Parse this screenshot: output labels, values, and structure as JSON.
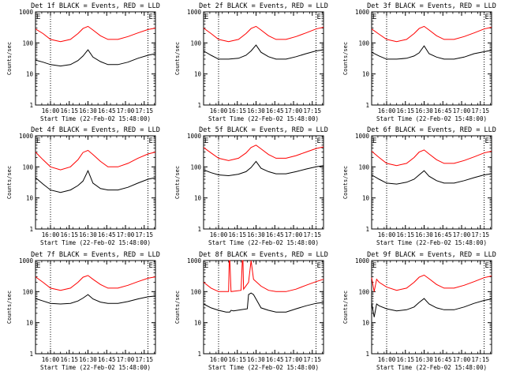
{
  "chart_data": [
    {
      "type": "line",
      "title": "Det 1f BLACK = Events, RED = LLD",
      "xlabel": "Start Time (22-Feb-02 15:48:00)",
      "ylabel": "Counts/sec",
      "x_ticks": [
        "16:00",
        "16:15",
        "16:30",
        "16:45",
        "17:00",
        "17:15"
      ],
      "y_ticks": [
        "1",
        "10",
        "100",
        "1000"
      ],
      "y_scale": "log",
      "ylim": [
        1,
        1000
      ],
      "x_range_min": [
        0,
        96
      ],
      "dotted_lines_min": [
        12,
        90
      ],
      "corner_markers": [
        "E",
        "E"
      ],
      "series": [
        {
          "color": "#000000",
          "x": [
            0,
            6,
            12,
            20,
            28,
            34,
            38,
            42,
            46,
            52,
            58,
            66,
            74,
            82,
            90,
            96
          ],
          "values": [
            28,
            24,
            20,
            18,
            20,
            27,
            38,
            60,
            35,
            25,
            20,
            20,
            24,
            32,
            40,
            45
          ]
        },
        {
          "color": "#ff0000",
          "x": [
            0,
            6,
            12,
            20,
            28,
            34,
            38,
            42,
            46,
            52,
            58,
            66,
            74,
            82,
            90,
            96
          ],
          "values": [
            280,
            200,
            130,
            110,
            130,
            200,
            290,
            340,
            260,
            170,
            130,
            130,
            160,
            210,
            270,
            300
          ]
        }
      ]
    },
    {
      "type": "line",
      "title": "Det 2f BLACK = Events, RED = LLD",
      "xlabel": "Start Time (22-Feb-02 15:48:00)",
      "ylabel": "Counts/sec",
      "x_ticks": [
        "16:00",
        "16:15",
        "16:30",
        "16:45",
        "17:00",
        "17:15"
      ],
      "y_ticks": [
        "1",
        "10",
        "100",
        "1000"
      ],
      "y_scale": "log",
      "ylim": [
        1,
        1000
      ],
      "x_range_min": [
        0,
        96
      ],
      "dotted_lines_min": [
        12,
        90
      ],
      "corner_markers": [
        "E",
        "E"
      ],
      "series": [
        {
          "color": "#000000",
          "x": [
            0,
            6,
            12,
            20,
            28,
            34,
            38,
            42,
            46,
            52,
            58,
            66,
            74,
            82,
            90,
            96
          ],
          "values": [
            55,
            40,
            30,
            30,
            32,
            40,
            55,
            85,
            50,
            36,
            30,
            30,
            36,
            45,
            55,
            60
          ]
        },
        {
          "color": "#ff0000",
          "x": [
            0,
            6,
            12,
            20,
            28,
            34,
            38,
            42,
            46,
            52,
            58,
            66,
            74,
            82,
            90,
            96
          ],
          "values": [
            300,
            200,
            130,
            110,
            130,
            200,
            290,
            340,
            260,
            170,
            130,
            130,
            160,
            210,
            280,
            320
          ]
        }
      ]
    },
    {
      "type": "line",
      "title": "Det 3f BLACK = Events, RED = LLD",
      "xlabel": "Start Time (22-Feb-02 15:48:00)",
      "ylabel": "Counts/sec",
      "x_ticks": [
        "16:00",
        "16:15",
        "16:30",
        "16:45",
        "17:00",
        "17:15"
      ],
      "y_ticks": [
        "1",
        "10",
        "100",
        "1000"
      ],
      "y_scale": "log",
      "ylim": [
        1,
        1000
      ],
      "x_range_min": [
        0,
        96
      ],
      "dotted_lines_min": [
        12,
        90
      ],
      "corner_markers": [
        "E",
        "E"
      ],
      "series": [
        {
          "color": "#000000",
          "x": [
            0,
            6,
            12,
            20,
            28,
            34,
            38,
            42,
            46,
            52,
            58,
            66,
            74,
            82,
            90,
            96
          ],
          "values": [
            50,
            38,
            30,
            30,
            32,
            38,
            48,
            80,
            45,
            35,
            30,
            30,
            35,
            45,
            52,
            58
          ]
        },
        {
          "color": "#ff0000",
          "x": [
            0,
            6,
            12,
            20,
            28,
            34,
            38,
            42,
            46,
            52,
            58,
            66,
            74,
            82,
            90,
            96
          ],
          "values": [
            280,
            190,
            130,
            110,
            130,
            200,
            290,
            340,
            260,
            170,
            130,
            130,
            160,
            210,
            280,
            320
          ]
        }
      ]
    },
    {
      "type": "line",
      "title": "Det 4f BLACK = Events, RED = LLD",
      "xlabel": "Start Time (22-Feb-02 15:48:00)",
      "ylabel": "Counts/sec",
      "x_ticks": [
        "16:00",
        "16:15",
        "16:30",
        "16:45",
        "17:00",
        "17:15"
      ],
      "y_ticks": [
        "1",
        "10",
        "100",
        "1000"
      ],
      "y_scale": "log",
      "ylim": [
        1,
        1000
      ],
      "x_range_min": [
        0,
        96
      ],
      "dotted_lines_min": [
        12,
        90
      ],
      "corner_markers": [
        "E",
        "E"
      ],
      "series": [
        {
          "color": "#000000",
          "x": [
            0,
            6,
            12,
            20,
            28,
            34,
            38,
            42,
            46,
            52,
            58,
            66,
            74,
            82,
            90,
            96
          ],
          "values": [
            45,
            28,
            18,
            15,
            18,
            25,
            35,
            75,
            30,
            20,
            18,
            18,
            22,
            30,
            40,
            45
          ]
        },
        {
          "color": "#ff0000",
          "x": [
            0,
            6,
            12,
            20,
            28,
            34,
            38,
            42,
            46,
            52,
            58,
            66,
            74,
            82,
            90,
            96
          ],
          "values": [
            300,
            170,
            100,
            80,
            100,
            170,
            290,
            340,
            250,
            150,
            100,
            100,
            130,
            190,
            260,
            300
          ]
        }
      ]
    },
    {
      "type": "line",
      "title": "Det 5f BLACK = Events, RED = LLD",
      "xlabel": "Start Time (22-Feb-02 15:48:00)",
      "ylabel": "Counts/sec",
      "x_ticks": [
        "16:00",
        "16:15",
        "16:30",
        "16:45",
        "17:00",
        "17:15"
      ],
      "y_ticks": [
        "1",
        "10",
        "100",
        "1000"
      ],
      "y_scale": "log",
      "ylim": [
        1,
        1000
      ],
      "x_range_min": [
        0,
        96
      ],
      "dotted_lines_min": [
        12,
        90
      ],
      "corner_markers": [
        "E",
        "E"
      ],
      "series": [
        {
          "color": "#000000",
          "x": [
            0,
            6,
            12,
            20,
            28,
            34,
            38,
            42,
            46,
            52,
            58,
            66,
            74,
            82,
            90,
            96
          ],
          "values": [
            80,
            65,
            55,
            52,
            58,
            70,
            95,
            150,
            90,
            70,
            60,
            60,
            70,
            85,
            100,
            110
          ]
        },
        {
          "color": "#ff0000",
          "x": [
            0,
            6,
            12,
            20,
            28,
            34,
            38,
            42,
            46,
            52,
            58,
            66,
            74,
            82,
            90,
            96
          ],
          "values": [
            420,
            280,
            190,
            160,
            190,
            280,
            420,
            500,
            380,
            250,
            190,
            190,
            230,
            300,
            390,
            440
          ]
        }
      ]
    },
    {
      "type": "line",
      "title": "Det 6f BLACK = Events, RED = LLD",
      "xlabel": "Start Time (22-Feb-02 15:48:00)",
      "ylabel": "Counts/sec",
      "x_ticks": [
        "16:00",
        "16:15",
        "16:30",
        "16:45",
        "17:00",
        "17:15"
      ],
      "y_ticks": [
        "1",
        "10",
        "100",
        "1000"
      ],
      "y_scale": "log",
      "ylim": [
        1,
        1000
      ],
      "x_range_min": [
        0,
        96
      ],
      "dotted_lines_min": [
        12,
        90
      ],
      "corner_markers": [
        "E",
        "E"
      ],
      "series": [
        {
          "color": "#000000",
          "x": [
            0,
            6,
            12,
            20,
            28,
            34,
            38,
            42,
            46,
            52,
            58,
            66,
            74,
            82,
            90,
            96
          ],
          "values": [
            55,
            40,
            30,
            28,
            32,
            40,
            55,
            75,
            50,
            36,
            30,
            30,
            36,
            45,
            55,
            60
          ]
        },
        {
          "color": "#ff0000",
          "x": [
            0,
            6,
            12,
            20,
            28,
            34,
            38,
            42,
            46,
            52,
            58,
            66,
            74,
            82,
            90,
            96
          ],
          "values": [
            320,
            200,
            130,
            110,
            130,
            200,
            300,
            350,
            260,
            170,
            130,
            130,
            160,
            210,
            280,
            320
          ]
        }
      ]
    },
    {
      "type": "line",
      "title": "Det 7f BLACK = Events, RED = LLD",
      "xlabel": "Start Time (22-Feb-02 15:48:00)",
      "ylabel": "Counts/sec",
      "x_ticks": [
        "16:00",
        "16:15",
        "16:30",
        "16:45",
        "17:00",
        "17:15"
      ],
      "y_ticks": [
        "1",
        "10",
        "100",
        "1000"
      ],
      "y_scale": "log",
      "ylim": [
        1,
        1000
      ],
      "x_range_min": [
        0,
        96
      ],
      "dotted_lines_min": [
        12,
        90
      ],
      "corner_markers": [
        "E",
        "E"
      ],
      "series": [
        {
          "color": "#000000",
          "x": [
            0,
            6,
            12,
            20,
            28,
            34,
            38,
            42,
            46,
            52,
            58,
            66,
            74,
            82,
            90,
            96
          ],
          "values": [
            60,
            50,
            42,
            40,
            42,
            50,
            62,
            80,
            58,
            46,
            42,
            42,
            48,
            58,
            68,
            72
          ]
        },
        {
          "color": "#ff0000",
          "x": [
            0,
            6,
            12,
            20,
            28,
            34,
            38,
            42,
            46,
            52,
            58,
            66,
            74,
            82,
            90,
            96
          ],
          "values": [
            300,
            200,
            130,
            110,
            130,
            200,
            290,
            330,
            250,
            170,
            130,
            130,
            160,
            210,
            270,
            300
          ]
        }
      ]
    },
    {
      "type": "line",
      "title": "Det 8f BLACK = Events, RED = LLD",
      "xlabel": "Start Time (22-Feb-02 15:48:00)",
      "ylabel": "Counts/sec",
      "x_ticks": [
        "16:00",
        "16:15",
        "16:30",
        "16:45",
        "17:00",
        "17:15"
      ],
      "y_ticks": [
        "1",
        "10",
        "100",
        "1000"
      ],
      "y_scale": "log",
      "ylim": [
        1,
        1000
      ],
      "x_range_min": [
        0,
        96
      ],
      "dotted_lines_min": [
        12,
        90
      ],
      "corner_markers": [
        "E",
        "E"
      ],
      "series": [
        {
          "color": "#000000",
          "x": [
            0,
            6,
            12,
            18,
            21,
            22,
            24,
            30,
            35,
            36,
            38,
            40,
            46,
            52,
            58,
            66,
            74,
            82,
            90,
            96
          ],
          "values": [
            40,
            30,
            25,
            22,
            22,
            25,
            24,
            26,
            28,
            80,
            90,
            80,
            30,
            25,
            22,
            22,
            28,
            35,
            42,
            45
          ]
        },
        {
          "color": "#ff0000",
          "x": [
            0,
            6,
            12,
            18,
            20,
            20.5,
            21,
            22,
            30,
            31,
            31.5,
            32,
            36,
            38,
            40,
            46,
            52,
            58,
            66,
            74,
            82,
            90,
            96
          ],
          "values": [
            200,
            130,
            100,
            100,
            100,
            1000,
            1000,
            100,
            110,
            1000,
            1000,
            120,
            200,
            1000,
            250,
            150,
            110,
            100,
            100,
            120,
            160,
            210,
            250
          ]
        }
      ]
    },
    {
      "type": "line",
      "title": "Det 9f BLACK = Events, RED = LLD",
      "xlabel": "Start Time (22-Feb-02 15:48:00)",
      "ylabel": "Counts/sec",
      "x_ticks": [
        "16:00",
        "16:15",
        "16:30",
        "16:45",
        "17:00",
        "17:15"
      ],
      "y_ticks": [
        "1",
        "10",
        "100",
        "1000"
      ],
      "y_scale": "log",
      "ylim": [
        1,
        1000
      ],
      "x_range_min": [
        0,
        96
      ],
      "dotted_lines_min": [
        12,
        90
      ],
      "corner_markers": [
        "E",
        "E"
      ],
      "series": [
        {
          "color": "#000000",
          "x": [
            0,
            2,
            4,
            6,
            12,
            20,
            28,
            34,
            38,
            42,
            46,
            52,
            58,
            66,
            74,
            82,
            90,
            96
          ],
          "values": [
            45,
            15,
            40,
            35,
            28,
            24,
            26,
            32,
            45,
            60,
            40,
            30,
            26,
            26,
            32,
            42,
            52,
            58
          ]
        },
        {
          "color": "#ff0000",
          "x": [
            0,
            2,
            4,
            6,
            12,
            20,
            28,
            34,
            38,
            42,
            46,
            52,
            58,
            66,
            74,
            82,
            90,
            96
          ],
          "values": [
            280,
            100,
            250,
            200,
            140,
            110,
            130,
            200,
            290,
            340,
            260,
            170,
            130,
            130,
            160,
            210,
            280,
            320
          ]
        }
      ]
    }
  ]
}
